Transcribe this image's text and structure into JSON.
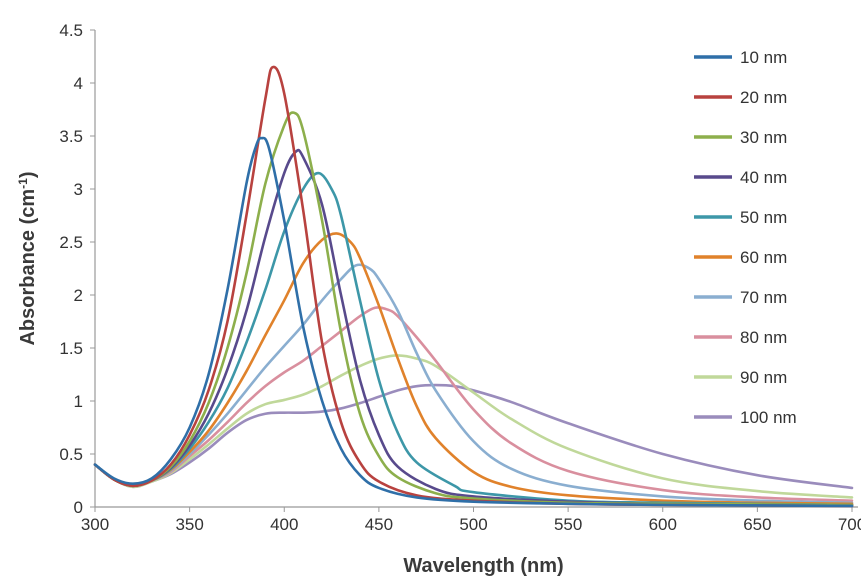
{
  "chart_data": {
    "type": "line",
    "title": "",
    "xlabel": "Wavelength (nm)",
    "ylabel_main": "Absorbance (cm",
    "ylabel_sup": "-1",
    "ylabel_close": ")",
    "xlim": [
      300,
      700
    ],
    "ylim": [
      0,
      4.5
    ],
    "xticks": [
      300,
      350,
      400,
      450,
      500,
      550,
      600,
      650,
      700
    ],
    "xtick_labels": [
      "300",
      "350",
      "400",
      "450",
      "500",
      "550",
      "600",
      "650",
      "700"
    ],
    "yticks": [
      0,
      0.5,
      1,
      1.5,
      2,
      2.5,
      3,
      3.5,
      4,
      4.5
    ],
    "ytick_labels": [
      "0",
      "0.5",
      "1",
      "1.5",
      "2",
      "2.5",
      "3",
      "3.5",
      "4",
      "4.5"
    ],
    "grid": false,
    "legend_position": "right",
    "series": [
      {
        "name": "10 nm",
        "color": "#2f6fa8",
        "points": [
          [
            300,
            0.4
          ],
          [
            310,
            0.27
          ],
          [
            320,
            0.22
          ],
          [
            330,
            0.27
          ],
          [
            340,
            0.45
          ],
          [
            350,
            0.75
          ],
          [
            360,
            1.25
          ],
          [
            370,
            2.05
          ],
          [
            380,
            3.05
          ],
          [
            385,
            3.4
          ],
          [
            388,
            3.48
          ],
          [
            392,
            3.38
          ],
          [
            400,
            2.7
          ],
          [
            410,
            1.7
          ],
          [
            420,
            1.0
          ],
          [
            430,
            0.55
          ],
          [
            440,
            0.3
          ],
          [
            450,
            0.18
          ],
          [
            470,
            0.09
          ],
          [
            500,
            0.05
          ],
          [
            550,
            0.03
          ],
          [
            600,
            0.02
          ],
          [
            700,
            0.01
          ]
        ]
      },
      {
        "name": "20 nm",
        "color": "#b8423f",
        "points": [
          [
            300,
            0.4
          ],
          [
            310,
            0.26
          ],
          [
            320,
            0.2
          ],
          [
            330,
            0.25
          ],
          [
            340,
            0.4
          ],
          [
            350,
            0.68
          ],
          [
            360,
            1.1
          ],
          [
            370,
            1.75
          ],
          [
            380,
            2.75
          ],
          [
            390,
            3.85
          ],
          [
            394,
            4.15
          ],
          [
            400,
            3.9
          ],
          [
            410,
            2.8
          ],
          [
            420,
            1.55
          ],
          [
            430,
            0.8
          ],
          [
            440,
            0.42
          ],
          [
            450,
            0.24
          ],
          [
            470,
            0.11
          ],
          [
            500,
            0.06
          ],
          [
            550,
            0.03
          ],
          [
            600,
            0.02
          ],
          [
            700,
            0.01
          ]
        ]
      },
      {
        "name": "30 nm",
        "color": "#8daf4c",
        "points": [
          [
            300,
            0.4
          ],
          [
            310,
            0.26
          ],
          [
            320,
            0.2
          ],
          [
            330,
            0.25
          ],
          [
            340,
            0.38
          ],
          [
            350,
            0.62
          ],
          [
            360,
            0.98
          ],
          [
            370,
            1.5
          ],
          [
            380,
            2.2
          ],
          [
            390,
            3.05
          ],
          [
            400,
            3.6
          ],
          [
            405,
            3.72
          ],
          [
            410,
            3.55
          ],
          [
            420,
            2.7
          ],
          [
            430,
            1.65
          ],
          [
            440,
            0.88
          ],
          [
            450,
            0.48
          ],
          [
            460,
            0.28
          ],
          [
            480,
            0.13
          ],
          [
            500,
            0.08
          ],
          [
            550,
            0.04
          ],
          [
            600,
            0.03
          ],
          [
            700,
            0.02
          ]
        ]
      },
      {
        "name": "40 nm",
        "color": "#584a8c",
        "points": [
          [
            300,
            0.4
          ],
          [
            310,
            0.26
          ],
          [
            320,
            0.2
          ],
          [
            330,
            0.25
          ],
          [
            340,
            0.37
          ],
          [
            350,
            0.58
          ],
          [
            360,
            0.88
          ],
          [
            370,
            1.3
          ],
          [
            380,
            1.85
          ],
          [
            390,
            2.55
          ],
          [
            400,
            3.15
          ],
          [
            406,
            3.35
          ],
          [
            410,
            3.3
          ],
          [
            420,
            2.85
          ],
          [
            430,
            2.0
          ],
          [
            440,
            1.2
          ],
          [
            450,
            0.68
          ],
          [
            460,
            0.38
          ],
          [
            480,
            0.17
          ],
          [
            500,
            0.1
          ],
          [
            550,
            0.05
          ],
          [
            600,
            0.03
          ],
          [
            700,
            0.02
          ]
        ]
      },
      {
        "name": "50 nm",
        "color": "#3d97a8",
        "points": [
          [
            300,
            0.4
          ],
          [
            310,
            0.26
          ],
          [
            320,
            0.2
          ],
          [
            330,
            0.25
          ],
          [
            340,
            0.36
          ],
          [
            350,
            0.55
          ],
          [
            360,
            0.8
          ],
          [
            370,
            1.12
          ],
          [
            380,
            1.55
          ],
          [
            390,
            2.05
          ],
          [
            400,
            2.6
          ],
          [
            410,
            3.0
          ],
          [
            418,
            3.15
          ],
          [
            425,
            3.0
          ],
          [
            430,
            2.75
          ],
          [
            440,
            1.95
          ],
          [
            450,
            1.2
          ],
          [
            460,
            0.7
          ],
          [
            470,
            0.42
          ],
          [
            490,
            0.2
          ],
          [
            500,
            0.14
          ],
          [
            550,
            0.06
          ],
          [
            600,
            0.04
          ],
          [
            700,
            0.02
          ]
        ]
      },
      {
        "name": "60 nm",
        "color": "#e0822b",
        "points": [
          [
            300,
            0.4
          ],
          [
            310,
            0.26
          ],
          [
            320,
            0.2
          ],
          [
            330,
            0.25
          ],
          [
            340,
            0.35
          ],
          [
            350,
            0.52
          ],
          [
            360,
            0.72
          ],
          [
            370,
            0.98
          ],
          [
            380,
            1.28
          ],
          [
            390,
            1.62
          ],
          [
            400,
            1.95
          ],
          [
            410,
            2.3
          ],
          [
            420,
            2.52
          ],
          [
            428,
            2.58
          ],
          [
            435,
            2.5
          ],
          [
            440,
            2.35
          ],
          [
            450,
            1.9
          ],
          [
            460,
            1.4
          ],
          [
            470,
            0.95
          ],
          [
            480,
            0.65
          ],
          [
            500,
            0.33
          ],
          [
            520,
            0.19
          ],
          [
            550,
            0.11
          ],
          [
            600,
            0.06
          ],
          [
            650,
            0.04
          ],
          [
            700,
            0.03
          ]
        ]
      },
      {
        "name": "70 nm",
        "color": "#8aaed0",
        "points": [
          [
            300,
            0.4
          ],
          [
            310,
            0.26
          ],
          [
            320,
            0.2
          ],
          [
            330,
            0.25
          ],
          [
            340,
            0.34
          ],
          [
            350,
            0.5
          ],
          [
            360,
            0.68
          ],
          [
            370,
            0.88
          ],
          [
            380,
            1.1
          ],
          [
            390,
            1.32
          ],
          [
            400,
            1.52
          ],
          [
            410,
            1.72
          ],
          [
            420,
            1.95
          ],
          [
            430,
            2.15
          ],
          [
            438,
            2.28
          ],
          [
            445,
            2.25
          ],
          [
            450,
            2.15
          ],
          [
            460,
            1.85
          ],
          [
            470,
            1.45
          ],
          [
            480,
            1.1
          ],
          [
            500,
            0.62
          ],
          [
            520,
            0.36
          ],
          [
            550,
            0.2
          ],
          [
            600,
            0.1
          ],
          [
            650,
            0.06
          ],
          [
            700,
            0.04
          ]
        ]
      },
      {
        "name": "80 nm",
        "color": "#d98f9e",
        "points": [
          [
            300,
            0.4
          ],
          [
            310,
            0.26
          ],
          [
            320,
            0.2
          ],
          [
            330,
            0.25
          ],
          [
            340,
            0.33
          ],
          [
            350,
            0.48
          ],
          [
            360,
            0.63
          ],
          [
            370,
            0.8
          ],
          [
            380,
            0.98
          ],
          [
            390,
            1.14
          ],
          [
            400,
            1.27
          ],
          [
            410,
            1.38
          ],
          [
            420,
            1.52
          ],
          [
            430,
            1.66
          ],
          [
            440,
            1.8
          ],
          [
            448,
            1.88
          ],
          [
            455,
            1.86
          ],
          [
            460,
            1.8
          ],
          [
            470,
            1.6
          ],
          [
            480,
            1.38
          ],
          [
            500,
            0.92
          ],
          [
            520,
            0.6
          ],
          [
            550,
            0.34
          ],
          [
            600,
            0.16
          ],
          [
            650,
            0.09
          ],
          [
            700,
            0.06
          ]
        ]
      },
      {
        "name": "90 nm",
        "color": "#c0d89a",
        "points": [
          [
            300,
            0.4
          ],
          [
            310,
            0.26
          ],
          [
            320,
            0.19
          ],
          [
            330,
            0.24
          ],
          [
            340,
            0.32
          ],
          [
            350,
            0.45
          ],
          [
            360,
            0.59
          ],
          [
            370,
            0.74
          ],
          [
            380,
            0.88
          ],
          [
            390,
            0.97
          ],
          [
            400,
            1.01
          ],
          [
            410,
            1.06
          ],
          [
            420,
            1.14
          ],
          [
            430,
            1.24
          ],
          [
            440,
            1.33
          ],
          [
            450,
            1.4
          ],
          [
            460,
            1.43
          ],
          [
            470,
            1.4
          ],
          [
            480,
            1.33
          ],
          [
            500,
            1.08
          ],
          [
            520,
            0.83
          ],
          [
            550,
            0.55
          ],
          [
            600,
            0.27
          ],
          [
            650,
            0.15
          ],
          [
            700,
            0.09
          ]
        ]
      },
      {
        "name": "100 nm",
        "color": "#9a8cbc",
        "points": [
          [
            300,
            0.4
          ],
          [
            310,
            0.26
          ],
          [
            320,
            0.19
          ],
          [
            330,
            0.24
          ],
          [
            340,
            0.31
          ],
          [
            350,
            0.42
          ],
          [
            360,
            0.55
          ],
          [
            370,
            0.7
          ],
          [
            380,
            0.82
          ],
          [
            390,
            0.88
          ],
          [
            400,
            0.89
          ],
          [
            410,
            0.89
          ],
          [
            420,
            0.9
          ],
          [
            430,
            0.93
          ],
          [
            440,
            0.98
          ],
          [
            450,
            1.04
          ],
          [
            460,
            1.1
          ],
          [
            470,
            1.14
          ],
          [
            480,
            1.15
          ],
          [
            490,
            1.14
          ],
          [
            500,
            1.1
          ],
          [
            520,
            0.99
          ],
          [
            550,
            0.79
          ],
          [
            600,
            0.5
          ],
          [
            650,
            0.3
          ],
          [
            700,
            0.18
          ]
        ]
      }
    ]
  }
}
